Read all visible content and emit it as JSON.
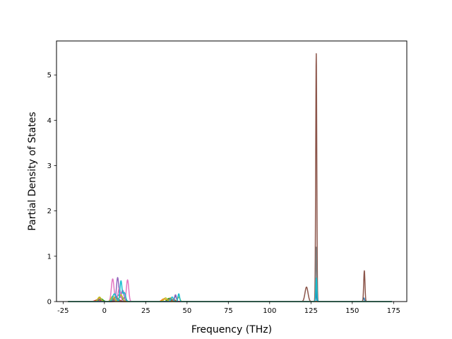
{
  "chart_data": {
    "type": "line",
    "xlabel": "Frequency (THz)",
    "ylabel": "Partial Density of States",
    "xlim": [
      -29,
      183
    ],
    "ylim": [
      0,
      5.75
    ],
    "xticks": [
      -25,
      0,
      25,
      50,
      75,
      100,
      125,
      150,
      175
    ],
    "yticks": [
      0,
      1,
      2,
      3,
      4,
      5
    ],
    "grid": false,
    "legend": "none",
    "x_range": [
      -22,
      174
    ],
    "series": [
      {
        "color": "#1f77b4",
        "peaks": [
          [
            -3,
            0.05,
            1.5
          ],
          [
            8,
            0.12,
            1.2
          ],
          [
            10,
            0.1,
            1
          ],
          [
            40,
            0.06,
            1
          ],
          [
            43,
            0.12,
            0.6
          ],
          [
            128,
            0.3,
            0.25
          ],
          [
            157,
            0.08,
            0.4
          ]
        ]
      },
      {
        "color": "#ff7f0e",
        "peaks": [
          [
            -3,
            0.08,
            1.2
          ],
          [
            6,
            0.08,
            1.2
          ],
          [
            36,
            0.06,
            1.2
          ],
          [
            40,
            0.08,
            1
          ]
        ]
      },
      {
        "color": "#2ca02c",
        "peaks": [
          [
            -2,
            0.06,
            1.2
          ],
          [
            7,
            0.1,
            1.2
          ],
          [
            12,
            0.08,
            1
          ],
          [
            39,
            0.07,
            1
          ]
        ]
      },
      {
        "color": "#d62728",
        "peaks": [
          [
            -4,
            0.04,
            1.5
          ],
          [
            8,
            0.06,
            1.2
          ],
          [
            42,
            0.04,
            1
          ]
        ]
      },
      {
        "color": "#9467bd",
        "peaks": [
          [
            8,
            0.53,
            0.7
          ],
          [
            11,
            0.25,
            0.8
          ],
          [
            43,
            0.15,
            0.6
          ]
        ]
      },
      {
        "color": "#8c564b",
        "peaks": [
          [
            122.3,
            0.32,
            0.9
          ],
          [
            128.2,
            5.47,
            0.32
          ],
          [
            157.3,
            0.68,
            0.38
          ]
        ]
      },
      {
        "color": "#e377c2",
        "peaks": [
          [
            5,
            0.5,
            0.8
          ],
          [
            9,
            0.3,
            0.8
          ],
          [
            14,
            0.48,
            0.7
          ]
        ]
      },
      {
        "color": "#7f7f7f",
        "peaks": [
          [
            -3,
            0.05,
            1.2
          ],
          [
            7,
            0.1,
            1.2
          ],
          [
            40,
            0.06,
            1
          ],
          [
            128.2,
            1.2,
            0.3
          ]
        ]
      },
      {
        "color": "#bcbd22",
        "peaks": [
          [
            -3,
            0.1,
            1
          ],
          [
            5,
            0.12,
            1
          ],
          [
            10,
            0.15,
            1
          ],
          [
            37,
            0.08,
            1
          ],
          [
            45,
            0.1,
            0.7
          ]
        ]
      },
      {
        "color": "#17becf",
        "peaks": [
          [
            6,
            0.17,
            1
          ],
          [
            10,
            0.45,
            0.6
          ],
          [
            12,
            0.2,
            0.8
          ],
          [
            41,
            0.1,
            0.7
          ],
          [
            45,
            0.17,
            0.5
          ],
          [
            128.3,
            0.52,
            0.3
          ]
        ]
      }
    ]
  }
}
